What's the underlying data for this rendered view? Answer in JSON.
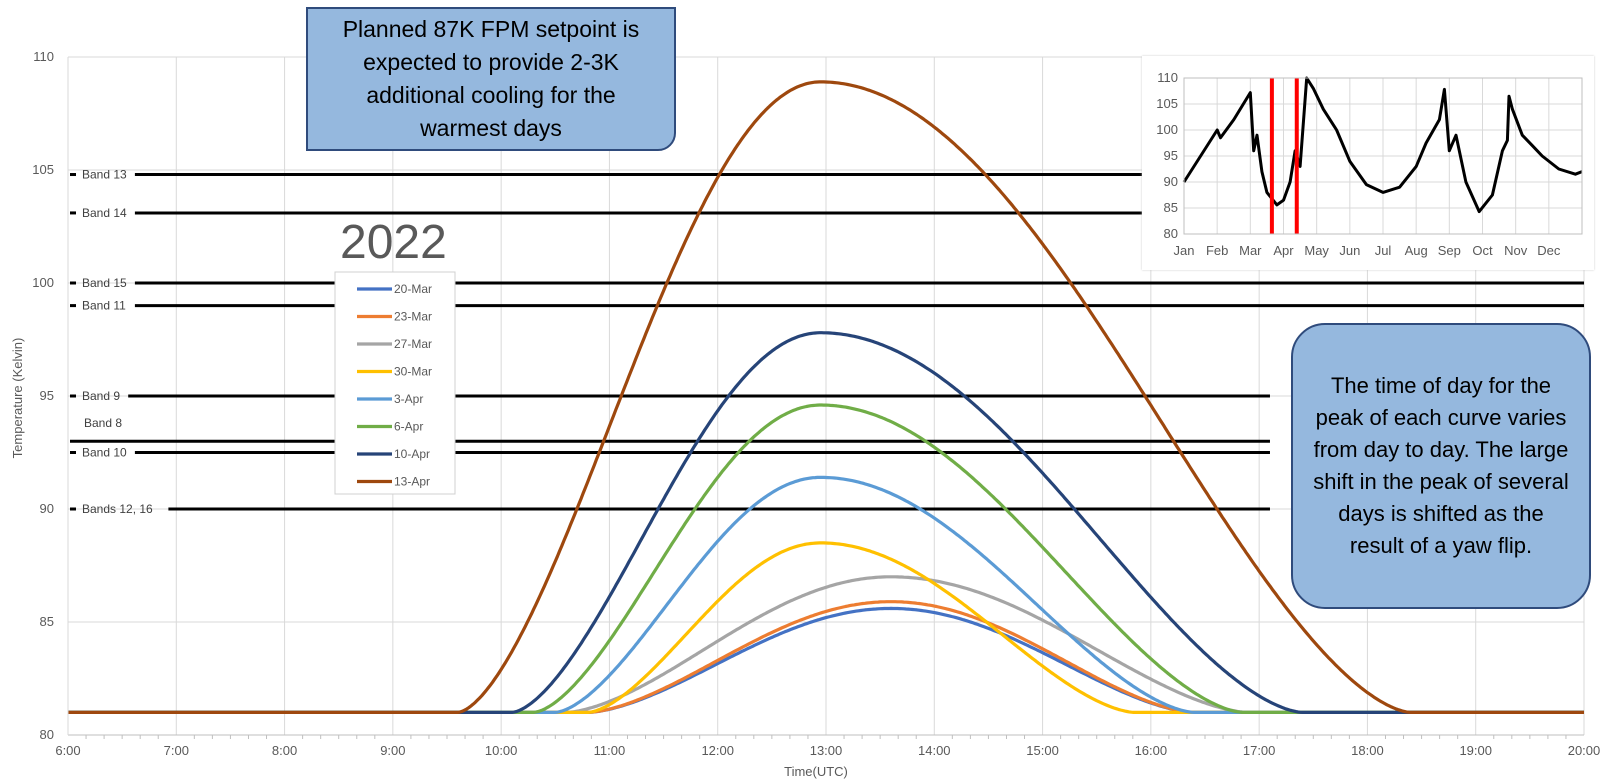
{
  "chart_data": [
    {
      "type": "line",
      "title": "",
      "annotation_year": "2022",
      "xlabel": "Time(UTC)",
      "ylabel": "Temperature (Kelvin)",
      "xlim": [
        6,
        20
      ],
      "ylim": [
        80,
        110
      ],
      "x_ticks": [
        "6:00",
        "7:00",
        "8:00",
        "9:00",
        "10:00",
        "11:00",
        "12:00",
        "13:00",
        "14:00",
        "15:00",
        "16:00",
        "17:00",
        "18:00",
        "19:00",
        "20:00"
      ],
      "y_ticks": [
        "80",
        "85",
        "90",
        "95",
        "100",
        "105",
        "110"
      ],
      "grid": true,
      "legend_position": "left-middle",
      "bands": [
        {
          "label": "Band 13",
          "y": 104.8,
          "x_end": 16.0
        },
        {
          "label": "Band 14",
          "y": 103.1,
          "x_end": 16.0
        },
        {
          "label": "Band 15",
          "y": 100.0,
          "x_end": 20.0
        },
        {
          "label": "Band 11",
          "y": 99.0,
          "x_end": 20.0
        },
        {
          "label": "Band 9",
          "y": 95.0,
          "x_end": 17.1
        },
        {
          "label": "Band 8",
          "y": 93.0,
          "x_end": 17.1
        },
        {
          "label": "Band 10",
          "y": 92.5,
          "x_end": 17.1
        },
        {
          "label": "Bands 12, 16",
          "y": 90.0,
          "x_end": 17.1
        }
      ],
      "series": [
        {
          "name": "20-Mar",
          "color": "#4472C4",
          "base": 81,
          "start": 10.8,
          "peak_x": 13.6,
          "peak_y": 85.6,
          "end": 16.4
        },
        {
          "name": "23-Mar",
          "color": "#ED7D31",
          "base": 81,
          "start": 10.8,
          "peak_x": 13.6,
          "peak_y": 85.9,
          "end": 16.4
        },
        {
          "name": "27-Mar",
          "color": "#A5A5A5",
          "base": 81,
          "start": 10.6,
          "peak_x": 13.6,
          "peak_y": 87.0,
          "end": 16.9
        },
        {
          "name": "30-Mar",
          "color": "#FFC000",
          "base": 81,
          "start": 10.8,
          "peak_x": 12.95,
          "peak_y": 88.5,
          "end": 15.85
        },
        {
          "name": "3-Apr",
          "color": "#5B9BD5",
          "base": 81,
          "start": 10.5,
          "peak_x": 12.95,
          "peak_y": 91.4,
          "end": 16.4
        },
        {
          "name": "6-Apr",
          "color": "#70AD47",
          "base": 81,
          "start": 10.3,
          "peak_x": 12.95,
          "peak_y": 94.6,
          "end": 16.85
        },
        {
          "name": "10-Apr",
          "color": "#264478",
          "base": 81,
          "start": 10.1,
          "peak_x": 12.95,
          "peak_y": 97.8,
          "end": 17.4
        },
        {
          "name": "13-Apr",
          "color": "#9E480E",
          "base": 81,
          "start": 9.6,
          "peak_x": 12.95,
          "peak_y": 108.9,
          "end": 18.4
        }
      ]
    },
    {
      "type": "line",
      "title": "",
      "categories": [
        "Jan",
        "Feb",
        "Mar",
        "Apr",
        "May",
        "Jun",
        "Jul",
        "Aug",
        "Sep",
        "Oct",
        "Nov",
        "Dec"
      ],
      "ylim": [
        80,
        110
      ],
      "y_ticks": [
        "80",
        "85",
        "90",
        "95",
        "100",
        "105",
        "110"
      ],
      "grid": true,
      "series": [
        {
          "name": "",
          "color": "#000000",
          "x": [
            0,
            0.5,
            1.0,
            1.1,
            1.5,
            2.0,
            2.1,
            2.2,
            2.35,
            2.5,
            2.8,
            3.0,
            3.2,
            3.35,
            3.5,
            3.7,
            3.9,
            4.2,
            4.6,
            5.0,
            5.5,
            6.0,
            6.5,
            7.0,
            7.3,
            7.7,
            7.85,
            8.0,
            8.2,
            8.5,
            8.9,
            9.3,
            9.6,
            9.75,
            9.8,
            9.9,
            10.2,
            10.5,
            10.8,
            11.3,
            11.8,
            12.0
          ],
          "y": [
            90,
            95,
            100,
            98.5,
            102,
            107.2,
            96,
            99,
            92,
            88,
            85.6,
            86.5,
            90,
            96,
            93,
            110,
            108,
            104,
            100,
            94,
            89.5,
            88,
            89,
            93,
            97.5,
            102,
            107.8,
            96,
            99,
            90,
            84.3,
            87.5,
            96,
            98,
            106.5,
            104,
            99,
            97,
            95,
            92.5,
            91.5,
            92
          ]
        }
      ],
      "markers": [
        {
          "label": "20-Mar",
          "x": 2.65,
          "color": "#FF0000"
        },
        {
          "label": "13-Apr",
          "x": 3.4,
          "color": "#FF0000"
        }
      ]
    }
  ],
  "callouts": {
    "setpoint": "Planned 87K FPM setpoint is expected to provide 2-3K additional cooling for the warmest days",
    "yaw_flip": "The time of day for the peak of each curve varies from day to day. The large shift in the peak of several days is shifted as the result of a yaw flip."
  }
}
